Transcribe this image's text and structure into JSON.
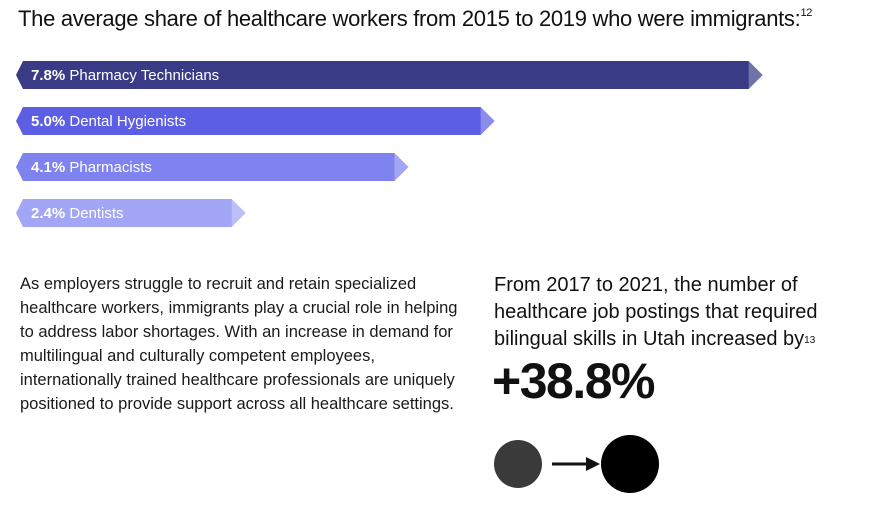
{
  "header": {
    "title": "The average share of healthcare workers from 2015 to 2019 who were immigrants:",
    "title_footnote": "12"
  },
  "chart_data": {
    "type": "bar",
    "orientation": "horizontal",
    "title": "The average share of healthcare workers from 2015 to 2019 who were immigrants:",
    "categories": [
      "Pharmacy Technicians",
      "Dental Hygienists",
      "Pharmacists",
      "Dentists"
    ],
    "values": [
      7.8,
      5.0,
      4.1,
      2.4
    ],
    "value_labels": [
      "7.8%",
      "5.0%",
      "4.1%",
      "2.4%"
    ],
    "unit": "%",
    "xlim": [
      0,
      8.2
    ],
    "grid": false,
    "colors": [
      "#3a3b86",
      "#5c5fe3",
      "#7f83f0",
      "#a2a6f5"
    ]
  },
  "body": {
    "paragraph": "As employers struggle to recruit and retain specialized healthcare workers, immigrants play a crucial role in helping to address labor shortages. With an increase in demand for multilingual and culturally competent employees, internationally trained healthcare professionals are uniquely positioned to provide support across all healthcare settings."
  },
  "stat": {
    "caption": "From 2017 to 2021, the number of healthcare job postings that required bilingual skills in Utah increased by",
    "caption_footnote": "13",
    "value": "+38.8%",
    "colors": {
      "small_circle": "#3a3a3a",
      "large_circle": "#000000",
      "arrow": "#111111"
    }
  }
}
